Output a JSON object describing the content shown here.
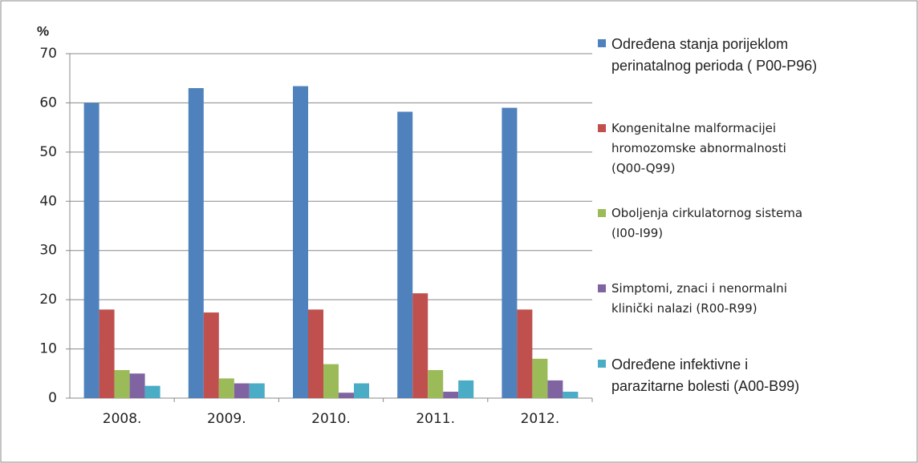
{
  "chart_data": {
    "type": "bar",
    "y_label": "%",
    "categories": [
      "2008.",
      "2009.",
      "2010.",
      "2011.",
      "2012."
    ],
    "series": [
      {
        "name": "Određena stanja porijeklom\nperinatalnog perioda  ( P00-P96)",
        "color": "#4f81bd",
        "values": [
          60,
          63,
          63.4,
          58.2,
          59
        ]
      },
      {
        "name": "Kongenitalne malformacijei\nhromozomske abnormalnosti\n(Q00-Q99)",
        "color": "#c0504d",
        "values": [
          18,
          17.4,
          18,
          21.3,
          18
        ]
      },
      {
        "name": "Oboljenja cirkulatornog sistema\n(I00-I99)",
        "color": "#9bbb59",
        "values": [
          5.7,
          4,
          6.9,
          5.7,
          8
        ]
      },
      {
        "name": "Simptomi, znaci i nenormalni\nklinički nalazi (R00-R99)",
        "color": "#8064a2",
        "values": [
          5,
          3,
          1.1,
          1.3,
          3.6
        ]
      },
      {
        "name": "Određene infektivne i\nparazitarne bolesti (A00-B99)",
        "color": "#4bacc6",
        "values": [
          2.5,
          3,
          3,
          3.6,
          1.3
        ]
      }
    ],
    "ylim": [
      0,
      70
    ],
    "yticks": [
      0,
      10,
      20,
      30,
      40,
      50,
      60,
      70
    ],
    "grid": true,
    "legend": "right"
  }
}
